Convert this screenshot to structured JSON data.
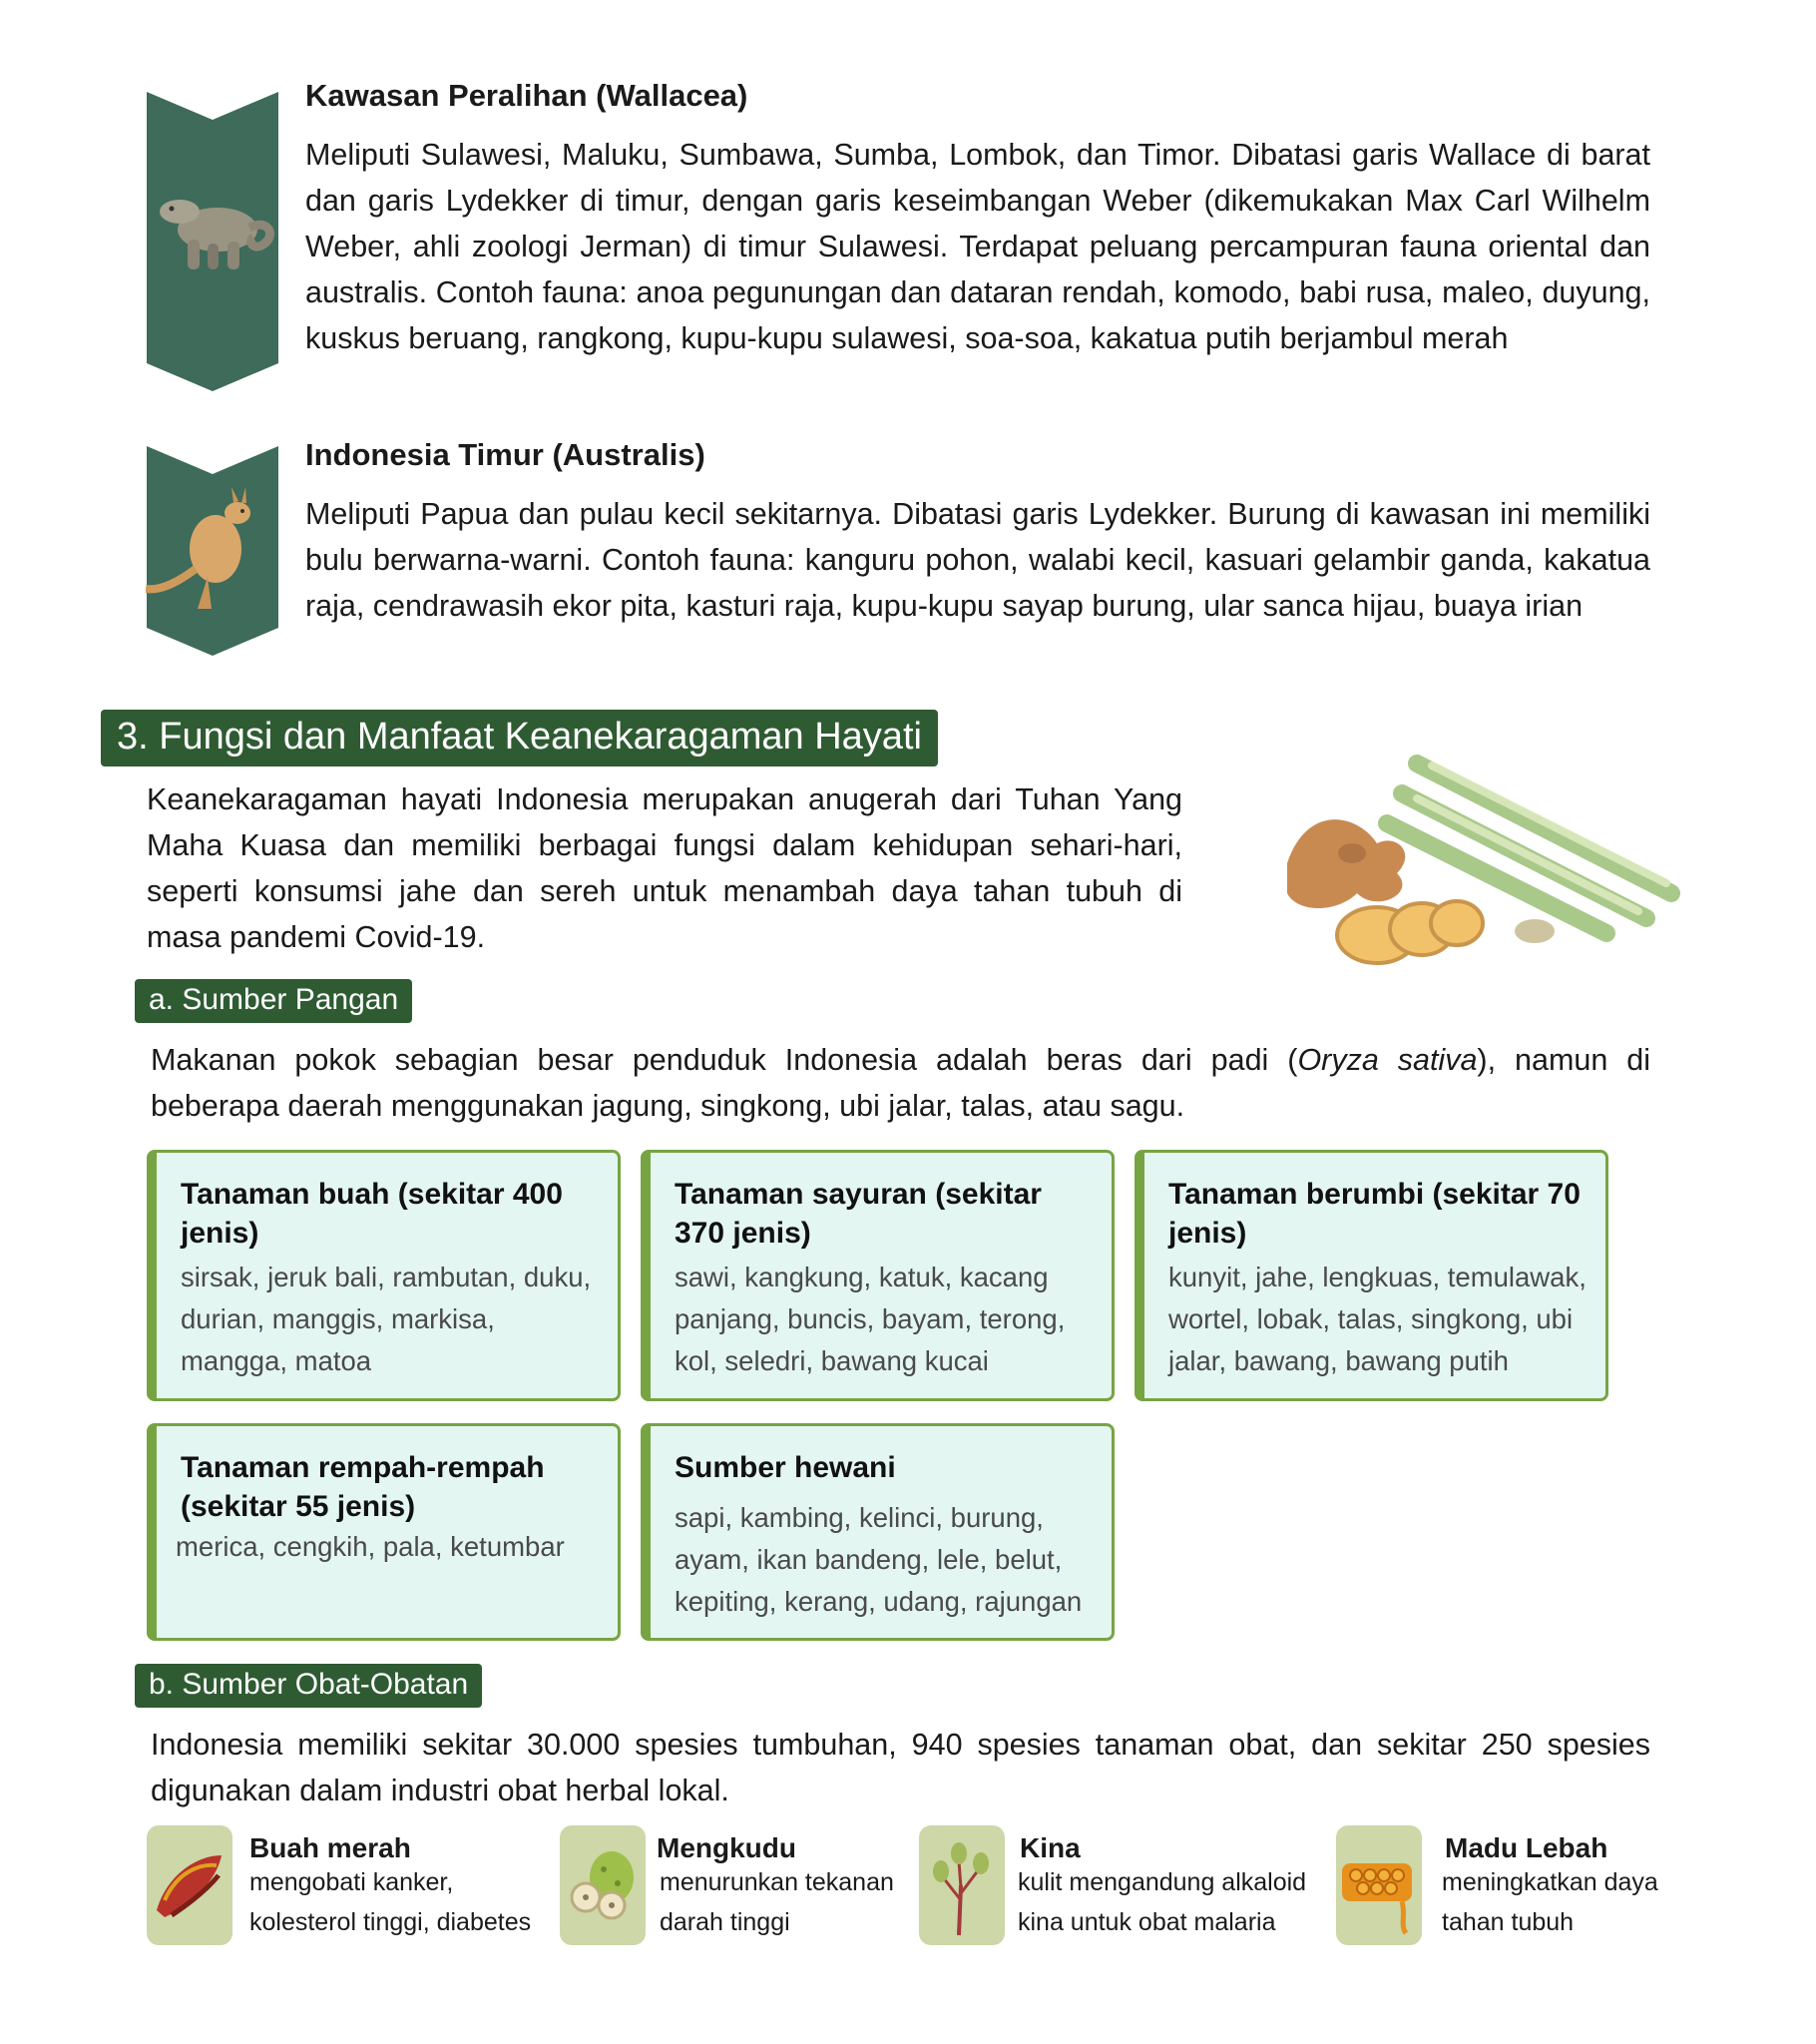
{
  "regions": [
    {
      "title": "Kawasan Peralihan (Wallacea)",
      "text": "Meliputi Sulawesi, Maluku, Sumbawa, Sumba, Lombok, dan Timor. Dibatasi garis Wallace di barat dan garis Lydekker di timur, dengan garis keseimbangan Weber (dikemukakan Max Carl Wilhelm Weber, ahli zoologi Jerman) di timur Sulawesi. Terdapat peluang percampuran fauna oriental dan australis. Contoh fauna: anoa pegunungan dan dataran rendah, komodo, babi rusa, maleo, duyung, kuskus beruang, rangkong, kupu-kupu sulawesi, soa-soa, kakatua putih berjambul merah",
      "icon": "komodo-icon"
    },
    {
      "title": "Indonesia Timur (Australis)",
      "text": "Meliputi Papua dan pulau kecil sekitarnya. Dibatasi garis Lydekker. Burung di kawasan ini memiliki bulu berwarna-warni. Contoh fauna: kanguru pohon, walabi kecil, kasuari gelambir ganda, kakatua raja, cendrawasih ekor pita, kasturi raja, kupu-kupu sayap burung, ular sanca hijau, buaya irian",
      "icon": "kangaroo-icon"
    }
  ],
  "section3": {
    "title": "3. Fungsi dan Manfaat Keanekaragaman Hayati",
    "intro": "Keanekaragaman hayati Indonesia merupakan anugerah dari Tuhan Yang Maha Kuasa dan memiliki berbagai fungsi dalam kehidupan sehari-hari, seperti konsumsi jahe dan sereh untuk menambah daya tahan tubuh di masa pandemi Covid-19."
  },
  "pangan": {
    "title": "a. Sumber Pangan",
    "text_before": "Makanan pokok sebagian besar penduduk Indonesia adalah beras dari padi (",
    "text_italic": "Oryza sativa",
    "text_after": "), namun di beberapa daerah menggunakan jagung, singkong, ubi jalar, talas, atau sagu.",
    "cards": [
      {
        "title": "Tanaman buah (sekitar 400 jenis)",
        "text": "sirsak, jeruk bali, rambutan, duku, durian, manggis, markisa, mangga, matoa"
      },
      {
        "title": "Tanaman sayuran (sekitar 370 jenis)",
        "text": "sawi, kangkung, katuk, kacang panjang, buncis, bayam, terong, kol, seledri, bawang kucai"
      },
      {
        "title": "Tanaman berumbi (sekitar 70 jenis)",
        "text": "kunyit, jahe, lengkuas, temulawak, wortel, lobak, talas, singkong, ubi jalar, bawang, bawang putih"
      },
      {
        "title": "Tanaman rempah-rempah (sekitar 55 jenis)",
        "text": "merica, cengkih, pala, ketumbar"
      },
      {
        "title": "Sumber hewani",
        "text": "sapi, kambing, kelinci, burung, ayam, ikan bandeng, lele, belut, kepiting, kerang, udang, rajungan"
      }
    ]
  },
  "obat": {
    "title": "b. Sumber Obat-Obatan",
    "text": "Indonesia memiliki sekitar 30.000 spesies tumbuhan, 940 spesies tanaman obat, dan sekitar 250 spesies digunakan dalam industri obat herbal lokal.",
    "items": [
      {
        "title": "Buah merah",
        "text": "mengobati kanker, kolesterol tinggi, diabetes",
        "icon": "red-fruit-icon"
      },
      {
        "title": "Mengkudu",
        "text": "menurunkan tekanan darah tinggi",
        "icon": "noni-fruit-icon"
      },
      {
        "title": "Kina",
        "text": "kulit mengandung alkaloid kina untuk obat malaria",
        "icon": "cinchona-icon"
      },
      {
        "title": "Madu Lebah",
        "text": "meningkatkan daya tahan tubuh",
        "icon": "honeycomb-icon"
      }
    ]
  },
  "colors": {
    "ribbon": "#3e6b5a",
    "header_bg": "#2f5b33",
    "card_bg": "#e3f6f2",
    "card_border": "#77a442",
    "icon_bg": "#cdd7a8"
  }
}
